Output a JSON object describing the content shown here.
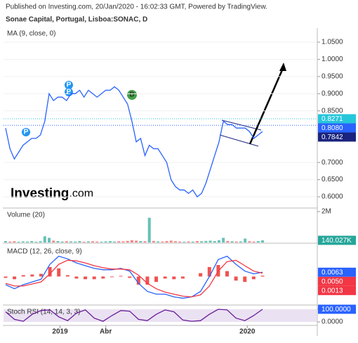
{
  "header": {
    "published": "Published on Investing.com, 20/Jan/2020 - 16:02:33 GMT, Powered by TradingView.",
    "symbol": "Sonae Capital, Portugal, Lisboa:SONAC, D",
    "logo": [
      "Investing",
      ".com"
    ]
  },
  "xticks": [
    {
      "value": 12.5,
      "label": "2019"
    },
    {
      "value": 23,
      "label": "Abr"
    },
    {
      "value": 55.5,
      "label": "2020"
    }
  ],
  "chart_data": [
    {
      "type": "line",
      "title": "MA (9, close, 0)",
      "color": "#2962ff",
      "values": [
        0.8,
        0.74,
        0.71,
        0.73,
        0.75,
        0.76,
        0.77,
        0.77,
        0.78,
        0.82,
        0.9,
        0.88,
        0.89,
        0.89,
        0.88,
        0.9,
        0.9,
        0.91,
        0.89,
        0.91,
        0.9,
        0.89,
        0.9,
        0.91,
        0.91,
        0.92,
        0.91,
        0.89,
        0.87,
        0.82,
        0.76,
        0.77,
        0.72,
        0.75,
        0.74,
        0.74,
        0.72,
        0.7,
        0.65,
        0.63,
        0.62,
        0.62,
        0.61,
        0.62,
        0.6,
        0.61,
        0.64,
        0.68,
        0.72,
        0.76,
        0.82,
        0.81,
        0.81,
        0.8,
        0.8,
        0.8,
        0.79,
        0.77,
        0.78,
        0.79
      ],
      "ylim": [
        0.5694,
        1.0908
      ],
      "yticks": [
        {
          "value": 0.6,
          "label": "0.6000"
        },
        {
          "value": 0.65,
          "label": "0.6500"
        },
        {
          "value": 0.7,
          "label": "0.7000"
        },
        {
          "value": 0.85,
          "label": "0.8500"
        },
        {
          "value": 0.9,
          "label": "0.9000"
        },
        {
          "value": 0.95,
          "label": "0.9500"
        },
        {
          "value": 1.0,
          "label": "1.0000"
        },
        {
          "value": 1.05,
          "label": "1.0500"
        }
      ],
      "price_labels": [
        {
          "value": 0.8271,
          "label": "0.8271",
          "color": "#26c6da"
        },
        {
          "value": 0.808,
          "label": "0.8080",
          "color": "#2962ff"
        },
        {
          "value": 0.7842,
          "label": "0.7842",
          "color": "#1a237e"
        }
      ]
    },
    {
      "type": "bar",
      "title": "Volume (20)",
      "values": [
        90000,
        60000,
        80000,
        50000,
        70000,
        60000,
        90000,
        50000,
        80000,
        400000,
        300000,
        120000,
        90000,
        60000,
        80000,
        70000,
        60000,
        90000,
        50000,
        70000,
        80000,
        60000,
        50000,
        70000,
        90000,
        60000,
        80000,
        70000,
        100000,
        150000,
        120000,
        90000,
        80000,
        1600000,
        100000,
        70000,
        60000,
        90000,
        120000,
        80000,
        60000,
        50000,
        70000,
        60000,
        90000,
        80000,
        100000,
        120000,
        90000,
        150000,
        300000,
        100000,
        80000,
        60000,
        70000,
        250000,
        80000,
        60000,
        90000,
        140027
      ],
      "ylim": [
        0,
        2136000
      ],
      "yticks": [
        {
          "value": 2000000,
          "label": "2M"
        }
      ],
      "price_labels": [
        {
          "value": 140027,
          "label": "140.027K",
          "color": "#26a69a"
        }
      ]
    },
    {
      "type": "macd",
      "title": "MACD (12, 26, close, 9)",
      "series": [
        {
          "name": "MACD",
          "color": "#2962ff",
          "values": [
            -0.012,
            -0.018,
            -0.012,
            -0.008,
            -0.004,
            0.018,
            0.03,
            0.026,
            0.02,
            0.016,
            0.012,
            0.01,
            0.01,
            0.012,
            0.008,
            -0.01,
            -0.022,
            -0.026,
            -0.026,
            -0.03,
            -0.032,
            -0.03,
            -0.022,
            0.0,
            0.025,
            0.03,
            0.018,
            0.008,
            0.004,
            0.0063
          ]
        },
        {
          "name": "Signal",
          "color": "#f23645",
          "values": [
            -0.01,
            -0.014,
            -0.014,
            -0.011,
            -0.008,
            0.004,
            0.018,
            0.024,
            0.023,
            0.02,
            0.016,
            0.013,
            0.011,
            0.011,
            0.01,
            0.002,
            -0.01,
            -0.018,
            -0.023,
            -0.026,
            -0.029,
            -0.03,
            -0.027,
            -0.014,
            0.008,
            0.022,
            0.024,
            0.016,
            0.008,
            0.005
          ]
        },
        {
          "name": "Histogram",
          "color": "#ef5350",
          "values": [
            -0.002,
            -0.004,
            0.002,
            0.003,
            0.004,
            0.014,
            0.012,
            0.002,
            -0.003,
            -0.004,
            -0.004,
            -0.003,
            -0.001,
            0.001,
            -0.002,
            -0.012,
            -0.012,
            -0.008,
            -0.003,
            -0.004,
            -0.003,
            0.0,
            0.005,
            0.014,
            0.017,
            0.008,
            -0.006,
            -0.008,
            -0.004,
            0.0013
          ]
        }
      ],
      "ylim": [
        -0.04,
        0.045
      ],
      "price_labels": [
        {
          "value": 0.0063,
          "label": "0.0063",
          "color": "#2962ff"
        },
        {
          "value": 0.005,
          "label": "0.0050",
          "color": "#f23645"
        },
        {
          "value": 0.0013,
          "label": "0.0013",
          "color": "#f23645"
        }
      ]
    },
    {
      "type": "line",
      "title": "Stoch RSI (14, 14, 3, 3)",
      "color": "#6a1b9a",
      "values": [
        80,
        20,
        5,
        60,
        90,
        95,
        40,
        10,
        70,
        95,
        30,
        5,
        50,
        90,
        85,
        20,
        10,
        60,
        95,
        80,
        15,
        5,
        10,
        60,
        100,
        95,
        30,
        10,
        50,
        100
      ],
      "ylim": [
        -22,
        122
      ],
      "yticks": [
        {
          "value": 100,
          "label": "100.0000"
        },
        {
          "value": 0,
          "label": "0.0000"
        }
      ],
      "price_labels": [
        {
          "value": 100,
          "label": "100.0000",
          "color": "#2962ff"
        }
      ]
    }
  ]
}
